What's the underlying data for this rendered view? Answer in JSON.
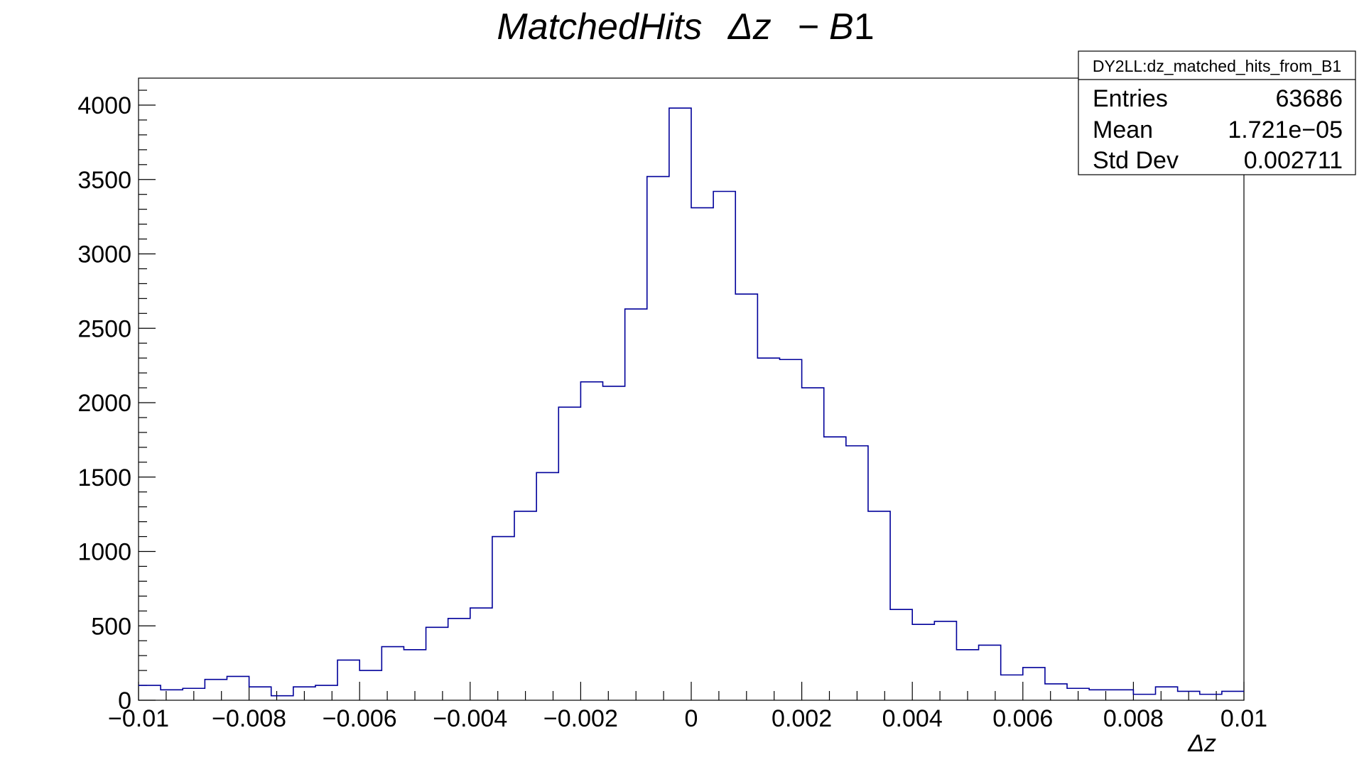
{
  "chart_data": {
    "type": "bar",
    "title_parts": [
      "MatchedHits",
      "Δz",
      "− B",
      "1"
    ],
    "xlabel": "Δz",
    "ylabel": "",
    "xlim": [
      -0.01,
      0.01
    ],
    "ylim": [
      0,
      4200
    ],
    "line_color": "#00009a",
    "bins": 50,
    "x_ticks": [
      {
        "value": -0.01,
        "label": "−0.01"
      },
      {
        "value": -0.008,
        "label": "−0.008"
      },
      {
        "value": -0.006,
        "label": "−0.006"
      },
      {
        "value": -0.004,
        "label": "−0.004"
      },
      {
        "value": -0.002,
        "label": "−0.002"
      },
      {
        "value": 0,
        "label": "0"
      },
      {
        "value": 0.002,
        "label": "0.002"
      },
      {
        "value": 0.004,
        "label": "0.004"
      },
      {
        "value": 0.006,
        "label": "0.006"
      },
      {
        "value": 0.008,
        "label": "0.008"
      },
      {
        "value": 0.01,
        "label": "0.01"
      }
    ],
    "y_ticks": [
      {
        "value": 0,
        "label": "0"
      },
      {
        "value": 500,
        "label": "500"
      },
      {
        "value": 1000,
        "label": "1000"
      },
      {
        "value": 1500,
        "label": "1500"
      },
      {
        "value": 2000,
        "label": "2000"
      },
      {
        "value": 2500,
        "label": "2500"
      },
      {
        "value": 3000,
        "label": "3000"
      },
      {
        "value": 3500,
        "label": "3500"
      },
      {
        "value": 4000,
        "label": "4000"
      }
    ],
    "values": [
      100,
      70,
      80,
      140,
      160,
      90,
      30,
      90,
      100,
      270,
      200,
      360,
      340,
      490,
      550,
      620,
      1100,
      1270,
      1530,
      1970,
      2140,
      2110,
      2630,
      3520,
      3980,
      3310,
      3420,
      2730,
      2300,
      2290,
      2100,
      1770,
      1710,
      1270,
      610,
      510,
      530,
      340,
      370,
      170,
      220,
      110,
      80,
      70,
      70,
      40,
      90,
      60,
      40,
      60
    ],
    "stats": {
      "name": "DY2LL:dz_matched_hits_from_B1",
      "rows": [
        {
          "label": "Entries",
          "value": "63686"
        },
        {
          "label": "Mean",
          "value": "1.721e−05"
        },
        {
          "label": "Std Dev",
          "value": "0.002711"
        }
      ]
    }
  }
}
